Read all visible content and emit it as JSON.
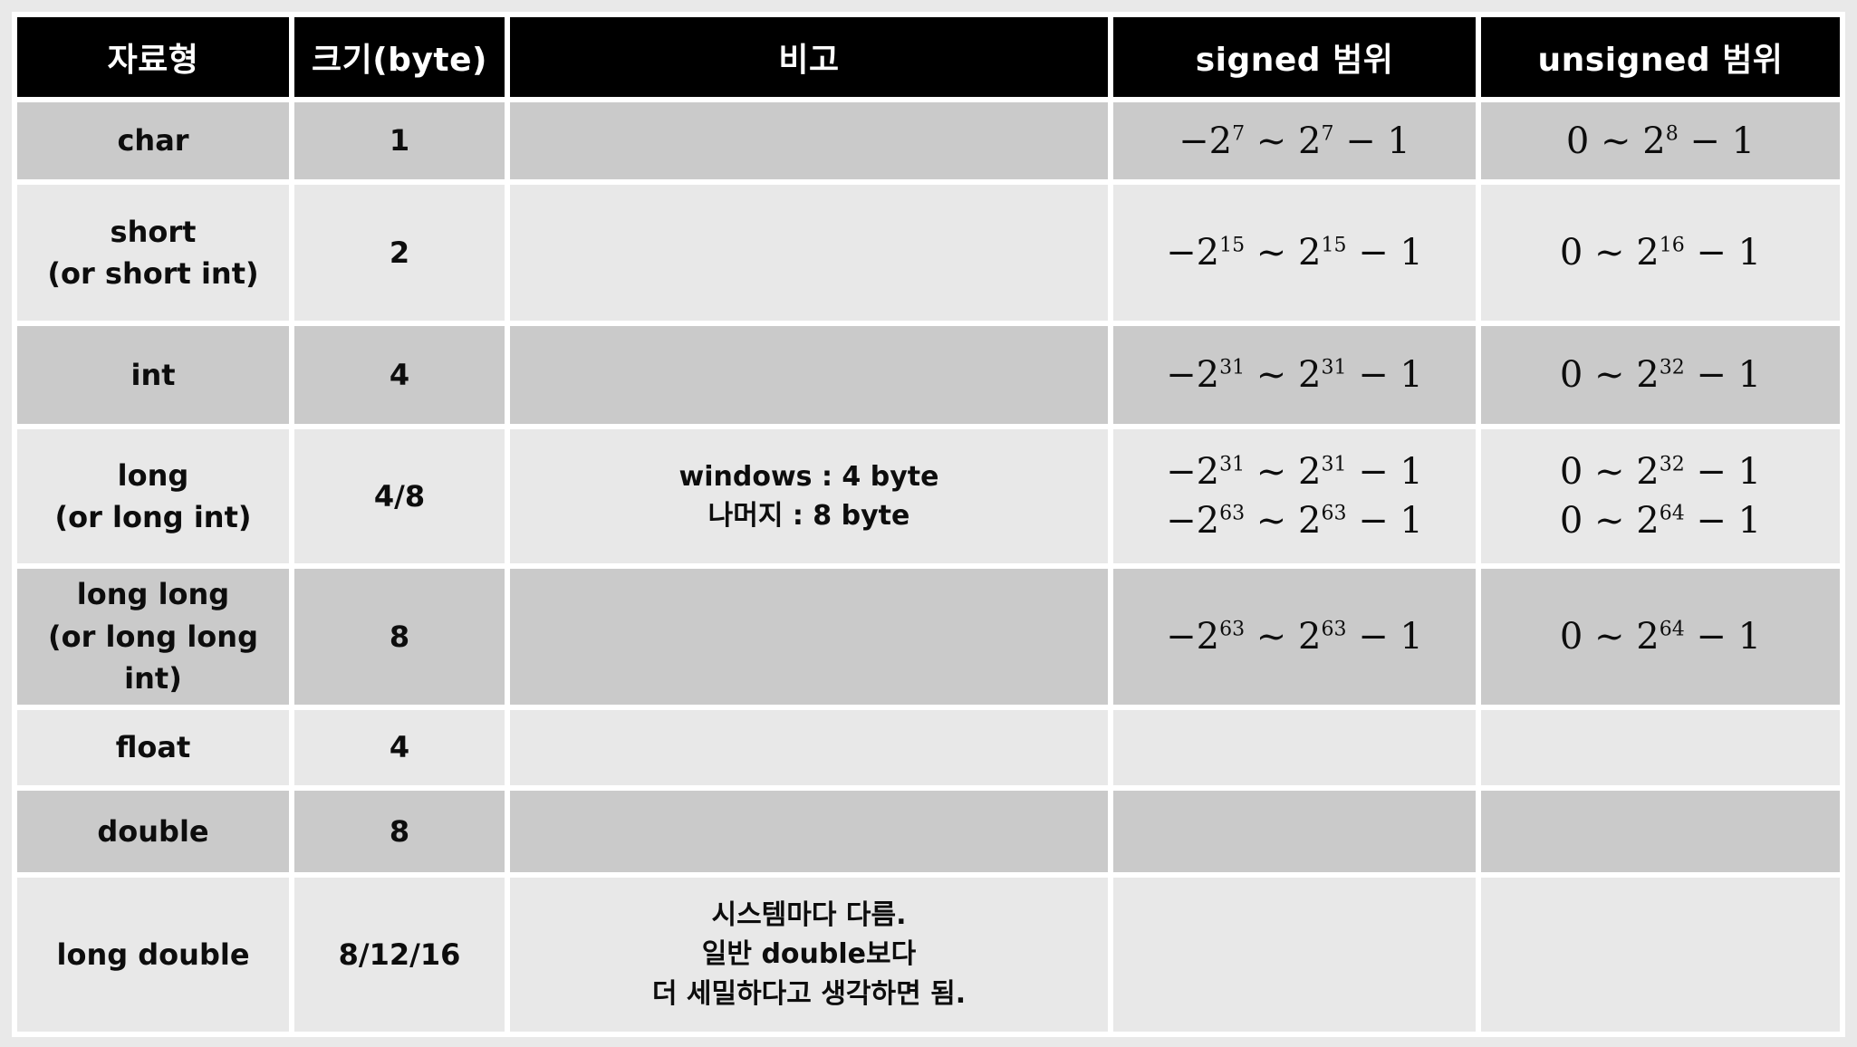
{
  "page": {
    "background": "#e9e9e9"
  },
  "table": {
    "colors": {
      "page_bg": "#e9e9e9",
      "gap": "#ffffff",
      "header_bg": "#000000",
      "header_fg": "#ffffff",
      "row_dark": "#cacaca",
      "row_light": "#e8e8e8",
      "text": "#0d0d0d"
    },
    "columns": [
      "자료형",
      "크기(byte)",
      "비고",
      "signed 범위",
      "unsigned 범위"
    ],
    "rows": [
      {
        "shade": "dark",
        "type": "char",
        "size": "1",
        "note": "",
        "signed": "−2^7 ~ 2^7 − 1",
        "unsigned": "0 ~ 2^8 − 1"
      },
      {
        "shade": "light",
        "type": "short\n(or short int)",
        "size": "2",
        "note": "",
        "signed": "−2^15 ~ 2^15 − 1",
        "unsigned": "0 ~ 2^16 − 1"
      },
      {
        "shade": "dark",
        "type": "int",
        "size": "4",
        "note": "",
        "signed": "−2^31 ~ 2^31 − 1",
        "unsigned": "0 ~ 2^32 − 1"
      },
      {
        "shade": "light",
        "type": "long\n(or long int)",
        "size": "4/8",
        "note": "windows : 4 byte\n나머지 : 8 byte",
        "signed": "−2^31 ~ 2^31 − 1\n−2^63 ~ 2^63 − 1",
        "unsigned": "0 ~ 2^32 − 1\n0 ~ 2^64 − 1"
      },
      {
        "shade": "dark",
        "type": "long long\n(or long long int)",
        "size": "8",
        "note": "",
        "signed": "−2^63 ~ 2^63 − 1",
        "unsigned": "0 ~ 2^64 − 1"
      },
      {
        "shade": "light",
        "type": "float",
        "size": "4",
        "note": "",
        "signed": "",
        "unsigned": ""
      },
      {
        "shade": "dark",
        "type": "double",
        "size": "8",
        "note": "",
        "signed": "",
        "unsigned": ""
      },
      {
        "shade": "light",
        "type": "long double",
        "size": "8/12/16",
        "note": "시스템마다 다름.\n일반 double보다\n더 세밀하다고 생각하면 됨.",
        "signed": "",
        "unsigned": ""
      }
    ]
  }
}
